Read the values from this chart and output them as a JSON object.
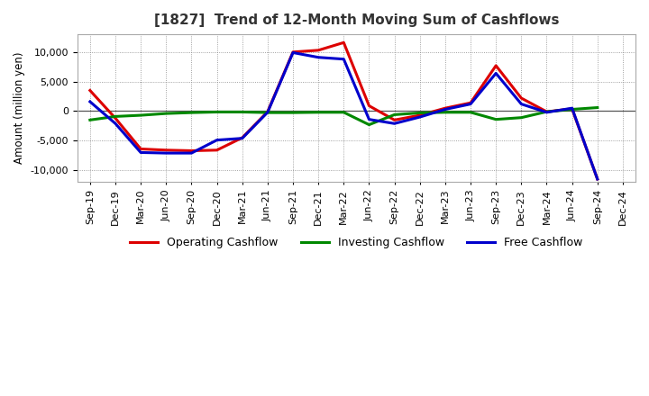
{
  "title": "[1827]  Trend of 12-Month Moving Sum of Cashflows",
  "ylabel": "Amount (million yen)",
  "background_color": "#ffffff",
  "plot_bg_color": "#ffffff",
  "grid_color": "#888888",
  "x_labels": [
    "Sep-19",
    "Dec-19",
    "Mar-20",
    "Jun-20",
    "Sep-20",
    "Dec-20",
    "Mar-21",
    "Jun-21",
    "Sep-21",
    "Dec-21",
    "Mar-22",
    "Jun-22",
    "Sep-22",
    "Dec-22",
    "Mar-23",
    "Jun-23",
    "Sep-23",
    "Dec-23",
    "Mar-24",
    "Jun-24",
    "Sep-24",
    "Dec-24"
  ],
  "operating": [
    3500,
    -1200,
    -6400,
    -6600,
    -6700,
    -6600,
    -4500,
    -100,
    10000,
    10300,
    11600,
    900,
    -1500,
    -700,
    500,
    1400,
    7700,
    2200,
    -100,
    400,
    -11500,
    null
  ],
  "investing": [
    -1500,
    -900,
    -700,
    -400,
    -250,
    -150,
    -150,
    -250,
    -250,
    -200,
    -200,
    -2300,
    -600,
    -300,
    -200,
    -200,
    -1400,
    -1100,
    -100,
    300,
    600,
    null
  ],
  "free": [
    1600,
    -2100,
    -7000,
    -7100,
    -7100,
    -4900,
    -4600,
    -200,
    9900,
    9100,
    8800,
    -1400,
    -2100,
    -1000,
    300,
    1200,
    6400,
    1200,
    -200,
    500,
    -11500,
    null
  ],
  "operating_color": "#dd0000",
  "investing_color": "#008800",
  "free_color": "#0000cc",
  "ylim": [
    -12000,
    13000
  ],
  "yticks": [
    -10000,
    -5000,
    0,
    5000,
    10000
  ],
  "linewidth": 2.2,
  "title_fontsize": 11,
  "axis_fontsize": 8.5,
  "tick_fontsize": 8,
  "legend_fontsize": 9
}
